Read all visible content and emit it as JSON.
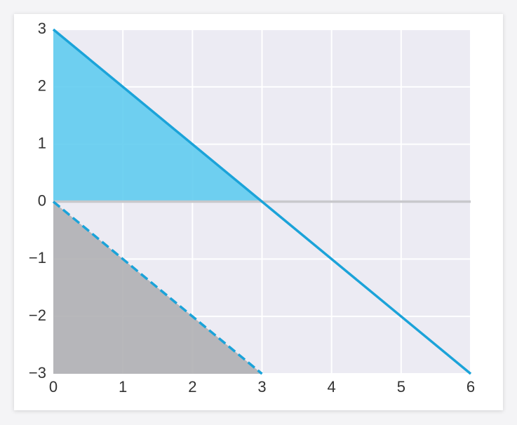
{
  "chart_data": {
    "type": "line",
    "series": [
      {
        "color": "#c8c8cc",
        "style": "solid",
        "x": [
          0,
          6
        ],
        "values": [
          0,
          0
        ]
      },
      {
        "color": "#1ba3d9",
        "style": "solid",
        "x": [
          0,
          6
        ],
        "values": [
          3,
          -3
        ]
      },
      {
        "color": "#1ba3d9",
        "style": "dashed",
        "x": [
          0,
          3
        ],
        "values": [
          0,
          -3
        ]
      }
    ],
    "areas": [
      {
        "color": "#5ccbef",
        "x": [
          0,
          3
        ],
        "values": [
          3,
          0
        ],
        "base": 0
      },
      {
        "color": "#aeaeb2",
        "x": [
          0,
          3
        ],
        "values": [
          0,
          -3
        ],
        "base": -3
      }
    ],
    "xlim": [
      0,
      6
    ],
    "xticks": [
      0,
      1,
      2,
      3,
      4,
      5,
      6
    ],
    "ylim": [
      -3,
      3
    ],
    "yticks": [
      {
        "value": -3,
        "label": "−3"
      },
      {
        "value": -2,
        "label": "−2"
      },
      {
        "value": -1,
        "label": "−1"
      },
      0,
      1,
      2,
      3
    ],
    "grid": true,
    "background": "#ecebf3"
  }
}
